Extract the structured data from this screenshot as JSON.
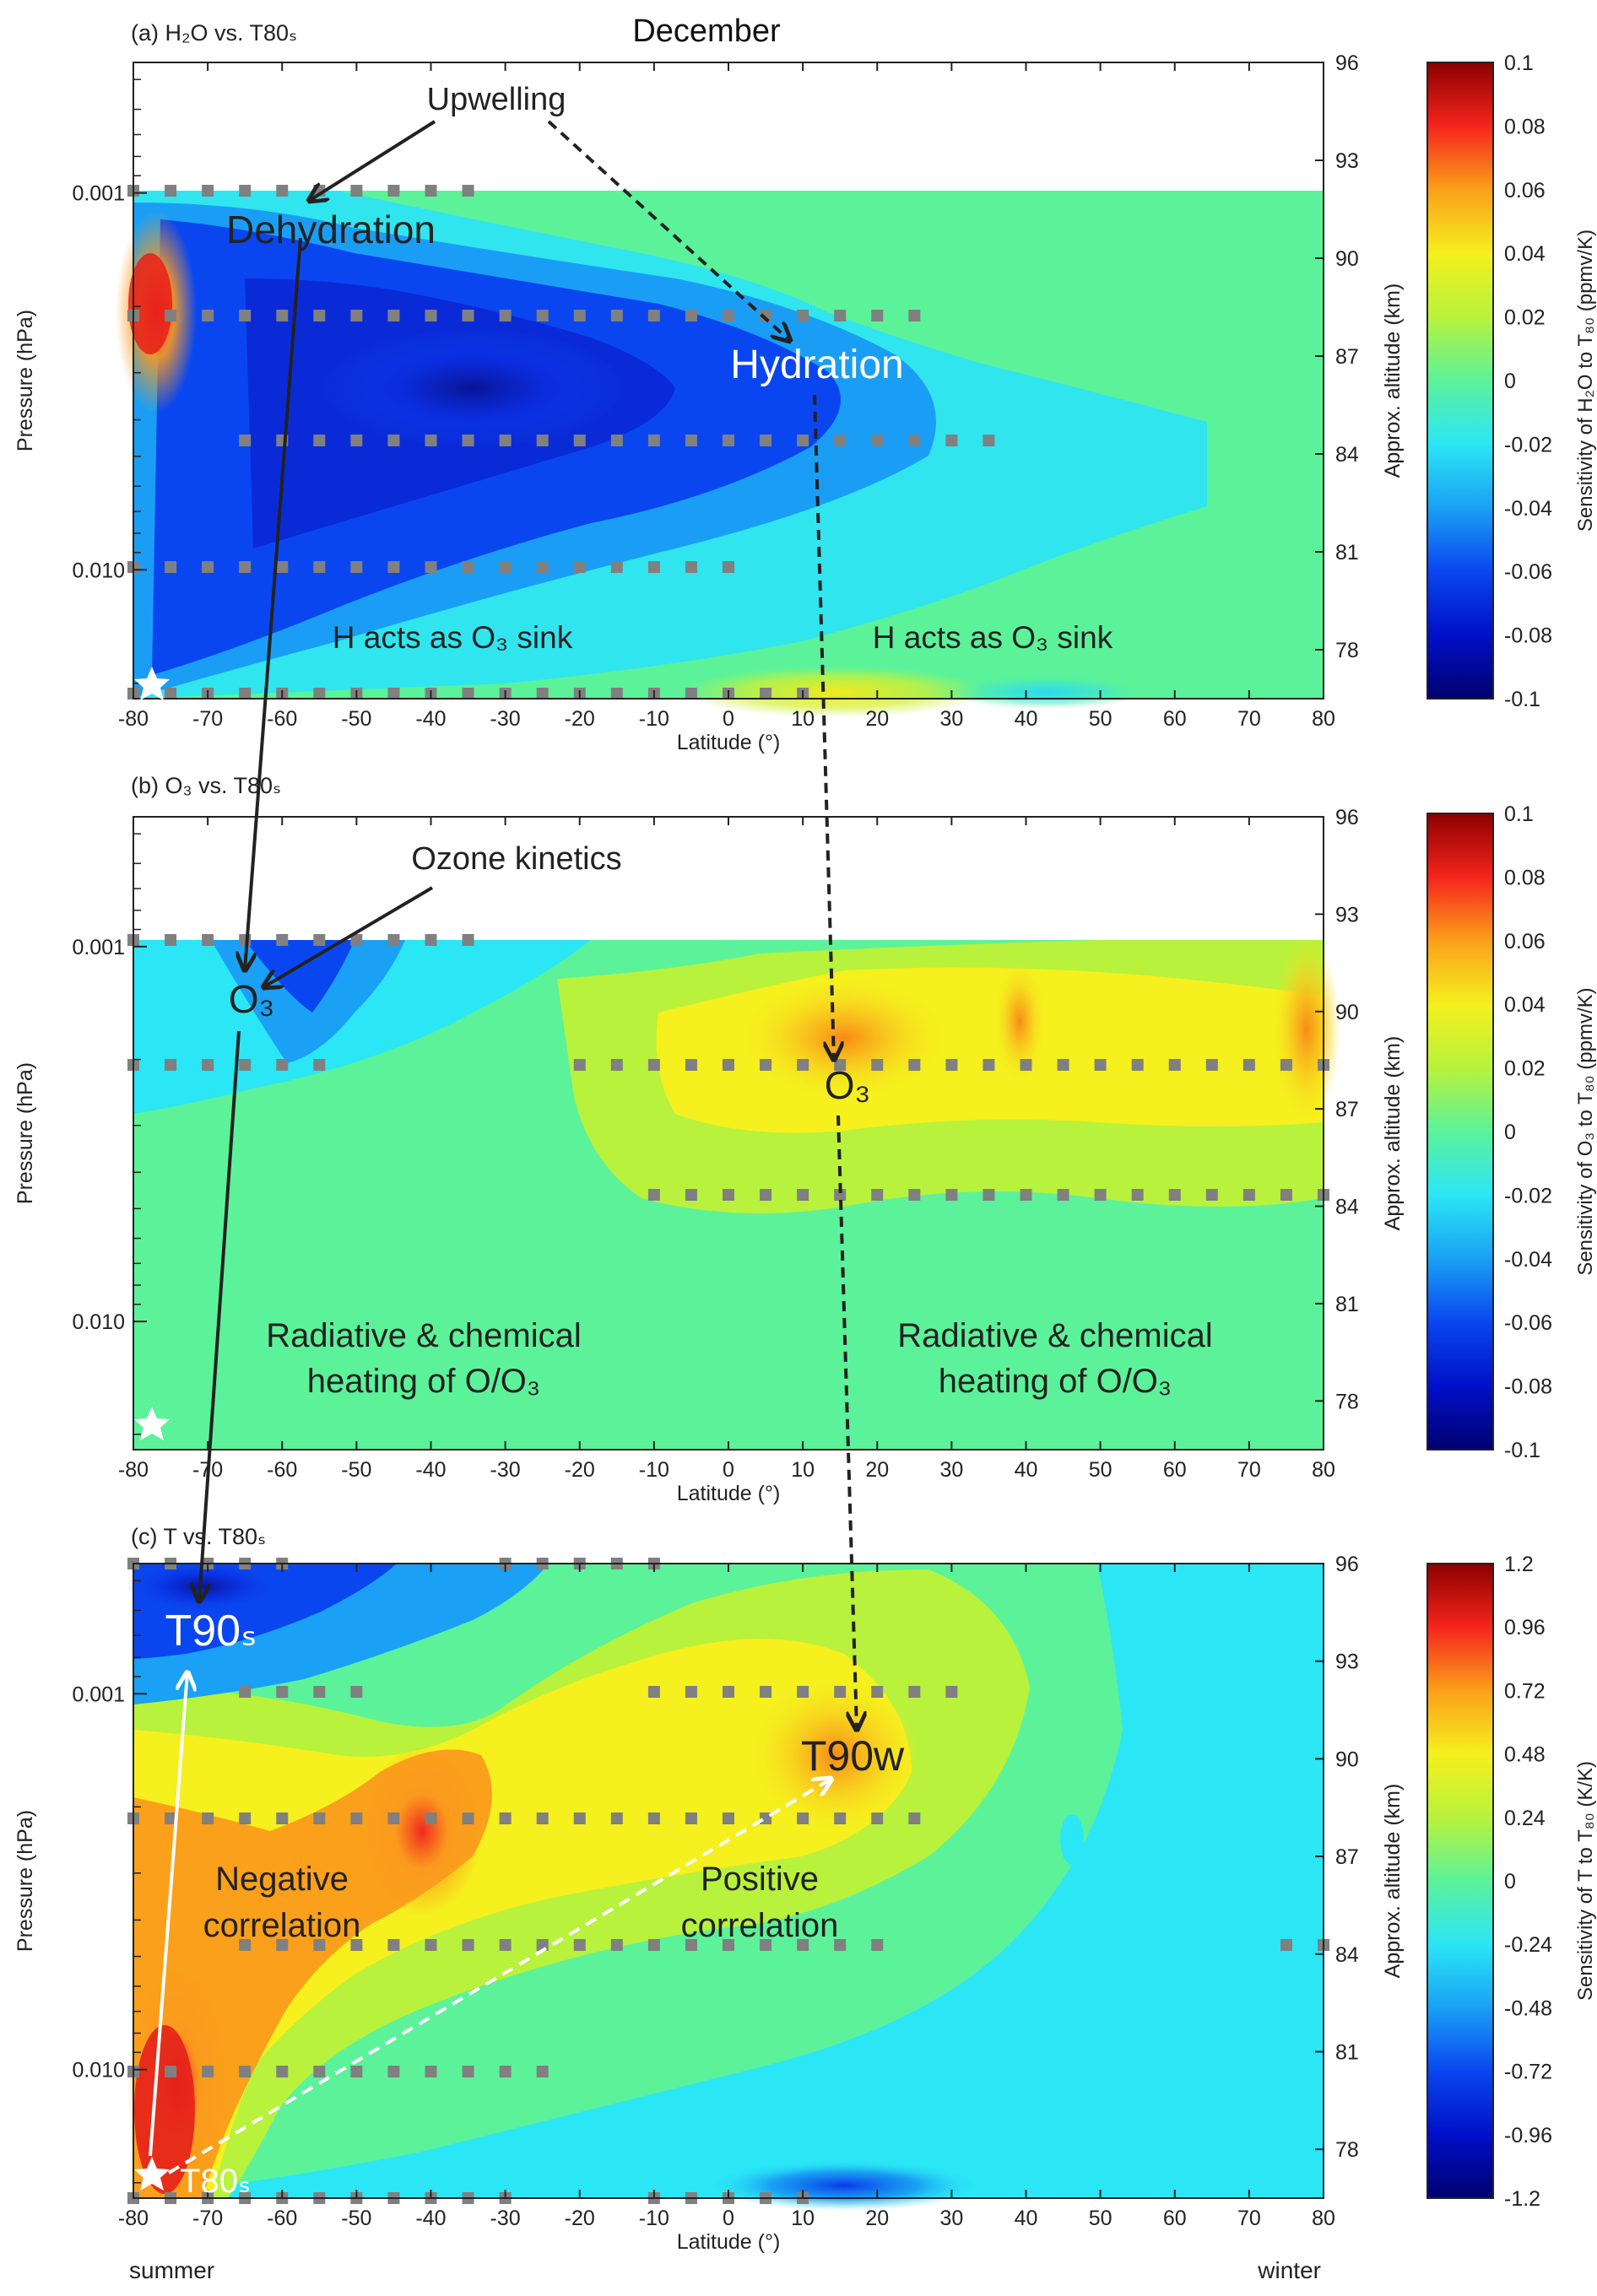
{
  "figure": {
    "title": "December",
    "footer_left": "summer",
    "footer_right": "winter"
  },
  "chart_data": [
    {
      "type": "heatmap",
      "panel_label": "(a) H₂O vs. T80ₛ",
      "xlabel": "Latitude (°)",
      "ylabel": "Pressure (hPa)",
      "y2label": "Approx. altitude (km)",
      "cbar_label": "Sensitivity of H₂O to T₈₀ (ppmv/K)",
      "x_ticks": [
        "-80",
        "-70",
        "-60",
        "-50",
        "-40",
        "-30",
        "-20",
        "-10",
        "0",
        "10",
        "20",
        "30",
        "40",
        "50",
        "60",
        "70",
        "80"
      ],
      "y_ticks": [
        "0.001",
        "0.010"
      ],
      "alt_ticks": [
        "96",
        "93",
        "90",
        "87",
        "84",
        "81",
        "78"
      ],
      "cbar_ticks": [
        "0.1",
        "0.08",
        "0.06",
        "0.04",
        "0.02",
        "0",
        "-0.02",
        "-0.04",
        "-0.06",
        "-0.08",
        "-0.1"
      ],
      "xlim": [
        -80,
        80
      ],
      "ylim_km": [
        76.5,
        96
      ],
      "clim": [
        -0.1,
        0.1
      ],
      "data_top_km": 92,
      "annotations": [
        "Upwelling",
        "Dehydration",
        "Hydration",
        "H acts as O₃ sink",
        "H acts as O₃ sink"
      ]
    },
    {
      "type": "heatmap",
      "panel_label": "(b) O₃ vs. T80ₛ",
      "xlabel": "Latitude (°)",
      "ylabel": "Pressure (hPa)",
      "y2label": "Approx. altitude (km)",
      "cbar_label": "Sensitivity of O₃ to T₈₀ (ppmv/K)",
      "x_ticks": [
        "-80",
        "-70",
        "-60",
        "-50",
        "-40",
        "-30",
        "-20",
        "-10",
        "0",
        "10",
        "20",
        "30",
        "40",
        "50",
        "60",
        "70",
        "80"
      ],
      "y_ticks": [
        "0.001",
        "0.010"
      ],
      "alt_ticks": [
        "96",
        "93",
        "90",
        "87",
        "84",
        "81",
        "78"
      ],
      "cbar_ticks": [
        "0.1",
        "0.08",
        "0.06",
        "0.04",
        "0.02",
        "0",
        "-0.02",
        "-0.04",
        "-0.06",
        "-0.08",
        "-0.1"
      ],
      "xlim": [
        -80,
        80
      ],
      "ylim_km": [
        76.5,
        96
      ],
      "clim": [
        -0.1,
        0.1
      ],
      "data_top_km": 92,
      "annotations": [
        "Ozone kinetics",
        "O₃",
        "O₃",
        "Radiative & chemical",
        "heating of O/O₃",
        "Radiative & chemical",
        "heating of O/O₃"
      ]
    },
    {
      "type": "heatmap",
      "panel_label": "(c) T vs. T80ₛ",
      "xlabel": "Latitude (°)",
      "ylabel": "Pressure (hPa)",
      "y2label": "Approx. altitude (km)",
      "cbar_label": "Sensitivity of T to T₈₀ (K/K)",
      "x_ticks": [
        "-80",
        "-70",
        "-60",
        "-50",
        "-40",
        "-30",
        "-20",
        "-10",
        "0",
        "10",
        "20",
        "30",
        "40",
        "50",
        "60",
        "70",
        "80"
      ],
      "y_ticks": [
        "0.001",
        "0.010"
      ],
      "alt_ticks": [
        "96",
        "93",
        "90",
        "87",
        "84",
        "81",
        "78"
      ],
      "cbar_ticks": [
        "1.2",
        "0.96",
        "0.72",
        "0.48",
        "0.24",
        "0",
        "-0.24",
        "-0.48",
        "-0.72",
        "-0.96",
        "-1.2"
      ],
      "xlim": [
        -80,
        80
      ],
      "ylim_km": [
        76.5,
        96
      ],
      "clim": [
        -1.2,
        1.2
      ],
      "data_top_km": 96,
      "annotations": [
        "T90ₛ",
        "T90w",
        "T80ₛ",
        "Negative",
        "correlation",
        "Positive",
        "correlation"
      ]
    }
  ]
}
